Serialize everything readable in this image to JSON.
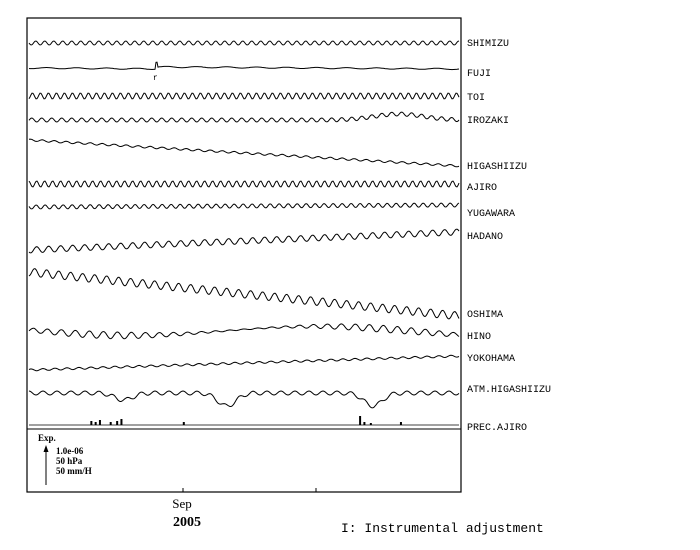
{
  "chart_data": {
    "type": "line",
    "x_axis": {
      "ticks": [
        {
          "label": "Sep",
          "sublabel": "2005"
        }
      ]
    },
    "series": [
      {
        "name": "SHIMIZU",
        "amp": 2.0,
        "period": 9,
        "trend": 0,
        "env": 0
      },
      {
        "name": "FUJI",
        "amp": 0.6,
        "period": 30,
        "trend": 3,
        "env": 0,
        "event": {
          "pos": 0.295,
          "marker": "r"
        }
      },
      {
        "name": "TOI",
        "amp": 3.0,
        "period": 8,
        "trend": 0,
        "env": 0
      },
      {
        "name": "IROZAKI",
        "amp": 2.0,
        "period": 10,
        "trend": 0,
        "env": 0,
        "bump": {
          "pos": 0.86,
          "size": -6
        }
      },
      {
        "name": "HIGASHIIZU",
        "amp": 1.0,
        "period": 12,
        "trend": 26,
        "env": 0
      },
      {
        "name": "AJIRO",
        "amp": 3.0,
        "period": 8,
        "trend": 0,
        "env": 0
      },
      {
        "name": "YUGAWARA",
        "amp": 2.0,
        "period": 9,
        "trend": -2,
        "env": 0
      },
      {
        "name": "HADANO",
        "amp": 3.0,
        "period": 12,
        "trend": -18,
        "env": 0
      },
      {
        "name": "OSHIMA",
        "amp": 4.0,
        "period": 12,
        "trend": 44,
        "env": 0
      },
      {
        "name": "HINO",
        "amp": 2.0,
        "period": 14,
        "trend": 2,
        "env": 5
      },
      {
        "name": "YOKOHAMA",
        "amp": 1.0,
        "period": 12,
        "trend": -14,
        "env": 0
      },
      {
        "name": "ATM.HIGASHIIZU",
        "amp": 2.0,
        "period": 14,
        "trend": 0,
        "env": 0,
        "dips": [
          {
            "pos": 0.22,
            "depth": 7
          },
          {
            "pos": 0.46,
            "depth": 13
          },
          {
            "pos": 0.8,
            "depth": 13
          }
        ]
      },
      {
        "name": "PREC.AJIRO",
        "type": "bars",
        "values": [
          {
            "pos": 0.145,
            "h": 4
          },
          {
            "pos": 0.155,
            "h": 3
          },
          {
            "pos": 0.165,
            "h": 5
          },
          {
            "pos": 0.19,
            "h": 3
          },
          {
            "pos": 0.205,
            "h": 4
          },
          {
            "pos": 0.215,
            "h": 6
          },
          {
            "pos": 0.36,
            "h": 3
          },
          {
            "pos": 0.77,
            "h": 9
          },
          {
            "pos": 0.78,
            "h": 3
          },
          {
            "pos": 0.795,
            "h": 2
          },
          {
            "pos": 0.865,
            "h": 3
          }
        ]
      }
    ],
    "scale_legend": {
      "title": "Exp.",
      "lines": [
        "1.0e-06",
        "50 hPa",
        "50 mm/H"
      ]
    },
    "footnote": "I: Instrumental adjustment"
  }
}
